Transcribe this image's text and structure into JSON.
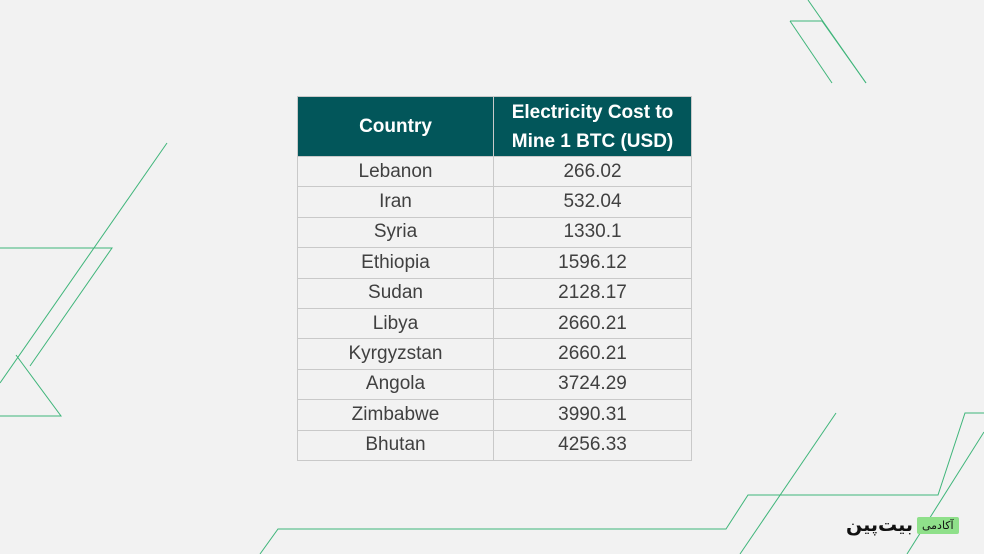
{
  "table": {
    "headers": [
      "Country",
      "Electricity Cost to Mine 1 BTC (USD)"
    ],
    "rows": [
      [
        "Lebanon",
        "266.02"
      ],
      [
        "Iran",
        "532.04"
      ],
      [
        "Syria",
        "1330.1"
      ],
      [
        "Ethiopia",
        "1596.12"
      ],
      [
        "Sudan",
        "2128.17"
      ],
      [
        "Libya",
        "2660.21"
      ],
      [
        "Kyrgyzstan",
        "2660.21"
      ],
      [
        "Angola",
        "3724.29"
      ],
      [
        "Zimbabwe",
        "3990.31"
      ],
      [
        "Bhutan",
        "4256.33"
      ]
    ]
  },
  "brand": {
    "name": "بیت‌پین",
    "badge": "آکادمی"
  },
  "colors": {
    "header_bg": "#02565a",
    "accent_line": "#3fb57a",
    "badge_bg": "#8fe08a",
    "page_bg": "#f2f2f2"
  }
}
